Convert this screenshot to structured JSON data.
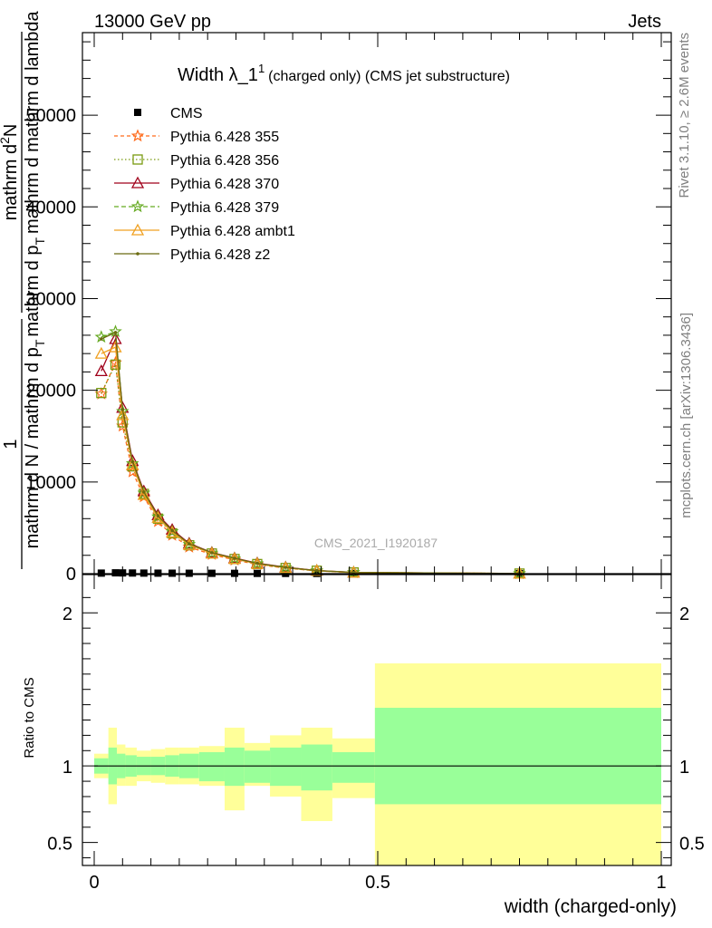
{
  "header": {
    "energy_label": "13000 GeV pp",
    "process_label": "Jets",
    "rivet_label": "Rivet 3.1.10, ≥ 2.6M events",
    "mcplots_label": "mcplots.cern.ch [arXiv:1306.3436]",
    "analysis_id": "CMS_2021_I1920187"
  },
  "chart_data": [
    {
      "type": "line",
      "title_main": "Width λ_1",
      "title_sup": "1",
      "title_sub": "(charged only) (CMS jet substructure)",
      "ylabel_parts": {
        "frac_one": "1",
        "denominator_1": "mathrm d N / mathrm d p",
        "denominator_sub": "T",
        "numerator": "mathrm d",
        "numerator_sup": "2",
        "numerator_tail": "N",
        "denom_2": "mathrm d p",
        "denom_2_sub": "T",
        "denom_2_tail": "mathrm d mathrm d lambda"
      },
      "xlabel": "",
      "xlim": [
        0,
        1
      ],
      "ylim": [
        0,
        59000
      ],
      "ytick_labels": [
        "0",
        "10000",
        "20000",
        "30000",
        "40000",
        "50000"
      ],
      "ytick_values": [
        0,
        10000,
        20000,
        30000,
        40000,
        50000
      ],
      "legend_position": "top-left",
      "x": [
        0.0125,
        0.0375,
        0.05,
        0.0675,
        0.0875,
        0.1125,
        0.1375,
        0.1675,
        0.2075,
        0.2475,
        0.2875,
        0.3375,
        0.3925,
        0.4575,
        0.75
      ],
      "series": [
        {
          "name": "CMS",
          "color": "#000000",
          "marker": "square",
          "dash": "none",
          "values": [
            60,
            90,
            80,
            70,
            60,
            55,
            50,
            45,
            40,
            35,
            30,
            25,
            20,
            15,
            5
          ]
        },
        {
          "name": "Pythia 6.428 355",
          "color": "#ff6a1a",
          "marker": "star",
          "dash": "4,3",
          "values": [
            19600,
            23000,
            16100,
            11100,
            8400,
            5700,
            4200,
            2900,
            2100,
            1500,
            1000,
            600,
            300,
            120,
            15
          ]
        },
        {
          "name": "Pythia 6.428 356",
          "color": "#7a9a10",
          "marker": "open-square",
          "dash": "1.5,2.5",
          "values": [
            19700,
            22800,
            16500,
            11700,
            8700,
            6000,
            4400,
            3100,
            2200,
            1600,
            1050,
            620,
            320,
            130,
            15
          ]
        },
        {
          "name": "Pythia 6.428 370",
          "color": "#a0001a",
          "marker": "open-triangle",
          "dash": "none",
          "values": [
            22100,
            25600,
            18100,
            12300,
            9000,
            6400,
            4800,
            3300,
            2300,
            1700,
            1150,
            700,
            350,
            140,
            20
          ]
        },
        {
          "name": "Pythia 6.428 379",
          "color": "#66aa22",
          "marker": "star",
          "dash": "5,3",
          "values": [
            25800,
            26400,
            17700,
            12000,
            8800,
            6200,
            4600,
            3200,
            2250,
            1650,
            1100,
            660,
            330,
            130,
            15
          ]
        },
        {
          "name": "Pythia 6.428 ambt1",
          "color": "#f0a020",
          "marker": "open-triangle",
          "dash": "none",
          "values": [
            24000,
            24700,
            17300,
            11900,
            8600,
            6100,
            4500,
            3150,
            2200,
            1620,
            1080,
            650,
            330,
            130,
            15
          ]
        },
        {
          "name": "Pythia 6.428 z2",
          "color": "#6b6b10",
          "marker": "dot",
          "dash": "none",
          "values": [
            25600,
            26300,
            17900,
            12200,
            8900,
            6300,
            4700,
            3250,
            2280,
            1680,
            1120,
            680,
            340,
            135,
            18
          ]
        }
      ]
    },
    {
      "type": "area",
      "ylabel": "Ratio to CMS",
      "xlabel": "width (charged-only)",
      "xlim": [
        0,
        1
      ],
      "ylim": [
        0.35,
        2.25
      ],
      "xtick_labels": [
        "0",
        "0.5",
        "1"
      ],
      "xtick_values": [
        0,
        0.5,
        1
      ],
      "ytick_labels": [
        "0.5",
        "1",
        "2"
      ],
      "ytick_values": [
        0.5,
        1,
        2
      ],
      "reference_line": 1,
      "band_colors": {
        "inner": "#99ff99",
        "outer": "#ffff99"
      },
      "bins": [
        {
          "x0": 0.0,
          "x1": 0.025,
          "inner": [
            0.95,
            1.05
          ],
          "outer": [
            0.92,
            1.08
          ]
        },
        {
          "x0": 0.025,
          "x1": 0.04,
          "inner": [
            0.88,
            1.12
          ],
          "outer": [
            0.75,
            1.25
          ]
        },
        {
          "x0": 0.04,
          "x1": 0.055,
          "inner": [
            0.92,
            1.08
          ],
          "outer": [
            0.87,
            1.14
          ]
        },
        {
          "x0": 0.055,
          "x1": 0.075,
          "inner": [
            0.93,
            1.07
          ],
          "outer": [
            0.87,
            1.12
          ]
        },
        {
          "x0": 0.075,
          "x1": 0.1,
          "inner": [
            0.94,
            1.06
          ],
          "outer": [
            0.9,
            1.1
          ]
        },
        {
          "x0": 0.1,
          "x1": 0.125,
          "inner": [
            0.94,
            1.06
          ],
          "outer": [
            0.89,
            1.11
          ]
        },
        {
          "x0": 0.125,
          "x1": 0.15,
          "inner": [
            0.93,
            1.07
          ],
          "outer": [
            0.88,
            1.12
          ]
        },
        {
          "x0": 0.15,
          "x1": 0.185,
          "inner": [
            0.92,
            1.08
          ],
          "outer": [
            0.88,
            1.12
          ]
        },
        {
          "x0": 0.185,
          "x1": 0.23,
          "inner": [
            0.9,
            1.09
          ],
          "outer": [
            0.87,
            1.13
          ]
        },
        {
          "x0": 0.23,
          "x1": 0.265,
          "inner": [
            0.87,
            1.12
          ],
          "outer": [
            0.71,
            1.25
          ]
        },
        {
          "x0": 0.265,
          "x1": 0.31,
          "inner": [
            0.89,
            1.1
          ],
          "outer": [
            0.87,
            1.15
          ]
        },
        {
          "x0": 0.31,
          "x1": 0.365,
          "inner": [
            0.87,
            1.12
          ],
          "outer": [
            0.8,
            1.2
          ]
        },
        {
          "x0": 0.365,
          "x1": 0.42,
          "inner": [
            0.84,
            1.14
          ],
          "outer": [
            0.64,
            1.25
          ]
        },
        {
          "x0": 0.42,
          "x1": 0.495,
          "inner": [
            0.89,
            1.09
          ],
          "outer": [
            0.79,
            1.18
          ]
        },
        {
          "x0": 0.495,
          "x1": 1.0,
          "inner": [
            0.75,
            1.38
          ],
          "outer": [
            0.35,
            1.67
          ]
        }
      ]
    }
  ]
}
